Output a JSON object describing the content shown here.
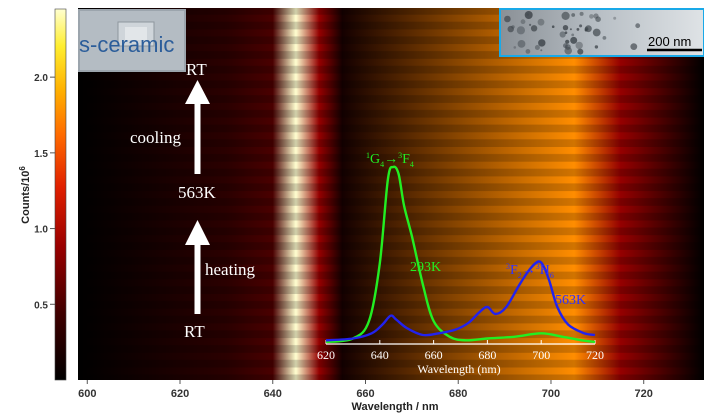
{
  "chart_data": [
    {
      "type": "heatmap",
      "xlabel": "Wavelength / nm",
      "x_ticks": [
        600,
        620,
        640,
        660,
        680,
        700,
        720
      ],
      "xlim": [
        598,
        733
      ],
      "ylim": [
        0,
        25
      ],
      "intensity_profile": [
        {
          "wavelength": 630,
          "intensity": 0.12
        },
        {
          "wavelength": 640,
          "intensity": 0.2
        },
        {
          "wavelength": 645,
          "intensity": 1.0
        },
        {
          "wavelength": 650,
          "intensity": 0.35
        },
        {
          "wavelength": 655,
          "intensity": 0.06
        },
        {
          "wavelength": 705,
          "intensity": 0.72
        },
        {
          "wavelength": 715,
          "intensity": 0.35
        }
      ],
      "colorbar": {
        "label": "Counts/10",
        "label_exponent": "6",
        "ticks": [
          "0.5",
          "1.0",
          "1.5",
          "2.0"
        ],
        "tick_values": [
          0.5,
          1.0,
          1.5,
          2.0
        ],
        "range": [
          0,
          2.45
        ]
      },
      "annotations": {
        "rt_top": "RT",
        "cooling": "cooling",
        "temperature_mid": "563K",
        "heating": "heating",
        "rt_bottom": "RT"
      },
      "photo_label": "s-ceramic",
      "scale_bar_label": "200 nm"
    },
    {
      "type": "line",
      "xlabel": "Wavelength (nm)",
      "x_ticks": [
        620,
        640,
        660,
        680,
        700,
        720
      ],
      "xlim": [
        620,
        720
      ],
      "transition_green": {
        "upper": "G",
        "upper_pre": "1",
        "upper_sub": "4",
        "arrow": "→",
        "lower": "F",
        "lower_pre": "3",
        "lower_sub": "4"
      },
      "transition_blue": {
        "upper": "F",
        "upper_pre": "3",
        "upper_sub": "2",
        "arrow": "→",
        "lower": "H",
        "lower_pre": "3",
        "lower_sub": "6"
      },
      "series": [
        {
          "name": "293K",
          "color": "#22ee22",
          "x": [
            620,
            630,
            636,
            640,
            643,
            645,
            647,
            649,
            652,
            656,
            660,
            666,
            672,
            680,
            690,
            700,
            708,
            715,
            720
          ],
          "y": [
            0.0,
            0.02,
            0.12,
            0.45,
            0.93,
            1.0,
            0.96,
            0.78,
            0.6,
            0.33,
            0.12,
            0.03,
            0.01,
            0.02,
            0.03,
            0.05,
            0.03,
            0.01,
            0.0
          ]
        },
        {
          "name": "563K",
          "color": "#2222ee",
          "x": [
            620,
            630,
            637,
            641,
            644,
            646,
            650,
            656,
            662,
            668,
            673,
            677,
            680,
            683,
            687,
            692,
            696,
            699,
            701,
            703,
            706,
            710,
            716,
            720
          ],
          "y": [
            0.01,
            0.02,
            0.05,
            0.1,
            0.15,
            0.13,
            0.08,
            0.04,
            0.05,
            0.07,
            0.11,
            0.17,
            0.2,
            0.16,
            0.2,
            0.33,
            0.42,
            0.46,
            0.43,
            0.35,
            0.2,
            0.1,
            0.05,
            0.04
          ]
        }
      ]
    }
  ]
}
